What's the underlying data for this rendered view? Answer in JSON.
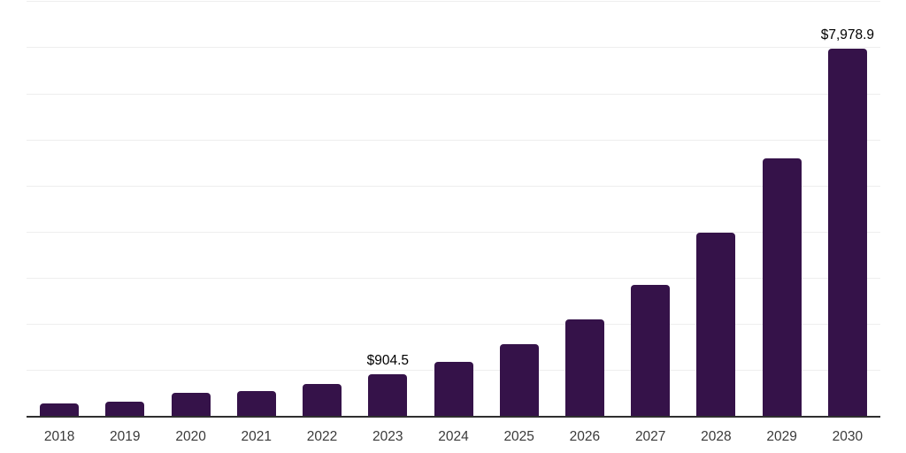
{
  "chart_data": {
    "type": "bar",
    "title": "",
    "xlabel": "",
    "ylabel": "",
    "categories": [
      "2018",
      "2019",
      "2020",
      "2021",
      "2022",
      "2023",
      "2024",
      "2025",
      "2026",
      "2027",
      "2028",
      "2029",
      "2030"
    ],
    "values": [
      285,
      315,
      510,
      545,
      700,
      904.5,
      1190,
      1560,
      2100,
      2855,
      3980,
      5585,
      7978.9
    ],
    "data_labels": [
      "",
      "",
      "",
      "",
      "",
      "$904.5",
      "",
      "",
      "",
      "",
      "",
      "",
      "$7,978.9"
    ],
    "ylim": [
      0,
      9000
    ],
    "grid_step": 1000,
    "grid": "horizontal-only",
    "legend": "none",
    "yaxis_tick_labels": "none",
    "colors": {
      "bar": "#351249",
      "axis_line": "#2f2f2f",
      "gridline": "#eeeeee",
      "data_label": "#000000",
      "tick_label": "#3a3a3a",
      "background": "#ffffff"
    }
  }
}
